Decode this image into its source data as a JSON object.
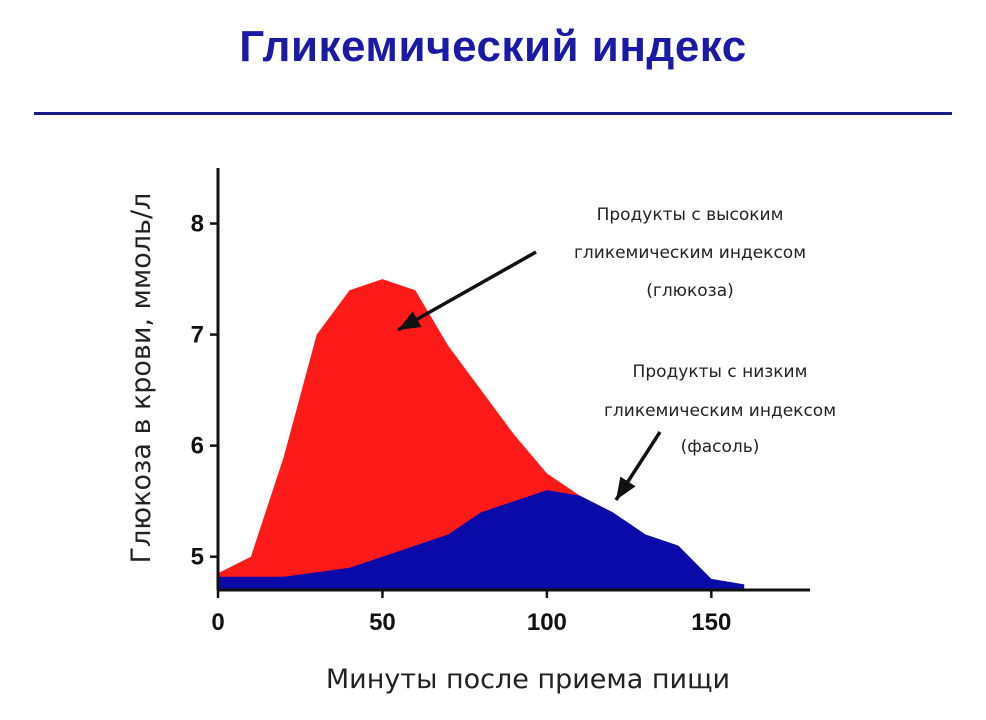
{
  "title": "Гликемический индекс",
  "chart_data": {
    "type": "area",
    "title": "Гликемический индекс",
    "xlabel": "Минуты после приема пищи",
    "ylabel": "Глюкоза в крови, ммоль/л",
    "xlim": [
      0,
      180
    ],
    "ylim": [
      4.7,
      8.5
    ],
    "xticks": [
      0,
      50,
      100,
      150
    ],
    "yticks": [
      5,
      6,
      7,
      8
    ],
    "grid": false,
    "series": [
      {
        "color": "#ff1a1a",
        "x": [
          0,
          10,
          20,
          30,
          40,
          50,
          60,
          70,
          80,
          90,
          100,
          110,
          120
        ],
        "values": [
          4.85,
          5.0,
          5.9,
          7.0,
          7.4,
          7.5,
          7.4,
          6.9,
          6.5,
          6.1,
          5.75,
          5.55,
          5.4
        ]
      },
      {
        "color": "#0a0aa8",
        "x": [
          0,
          10,
          20,
          30,
          40,
          50,
          60,
          70,
          80,
          90,
          100,
          110,
          120,
          130,
          140,
          150,
          160
        ],
        "values": [
          4.82,
          4.82,
          4.82,
          4.86,
          4.9,
          5.0,
          5.1,
          5.2,
          5.4,
          5.5,
          5.6,
          5.55,
          5.4,
          5.2,
          5.1,
          4.8,
          4.75
        ]
      }
    ],
    "annotations": [
      {
        "lines": [
          "Продукты с высоким",
          "гликемическим индексом",
          "(глюкоза)"
        ]
      },
      {
        "lines": [
          "Продукты с низким",
          "гликемическим индексом",
          "(фасоль)"
        ]
      }
    ]
  }
}
